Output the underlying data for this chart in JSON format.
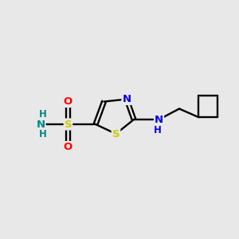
{
  "background_color": "#e8e8e8",
  "atom_colors": {
    "S_sulfonamide": "#cccc00",
    "S_thiazole": "#cccc00",
    "N_thiazole": "#0000ee",
    "N_amine": "#0000ee",
    "N_sulfonamide": "#008888",
    "O": "#ff0000",
    "C": "#000000",
    "H": "#008888"
  },
  "figsize": [
    3.0,
    3.0
  ],
  "dpi": 100,
  "xlim": [
    0,
    10
  ],
  "ylim": [
    0,
    10
  ]
}
